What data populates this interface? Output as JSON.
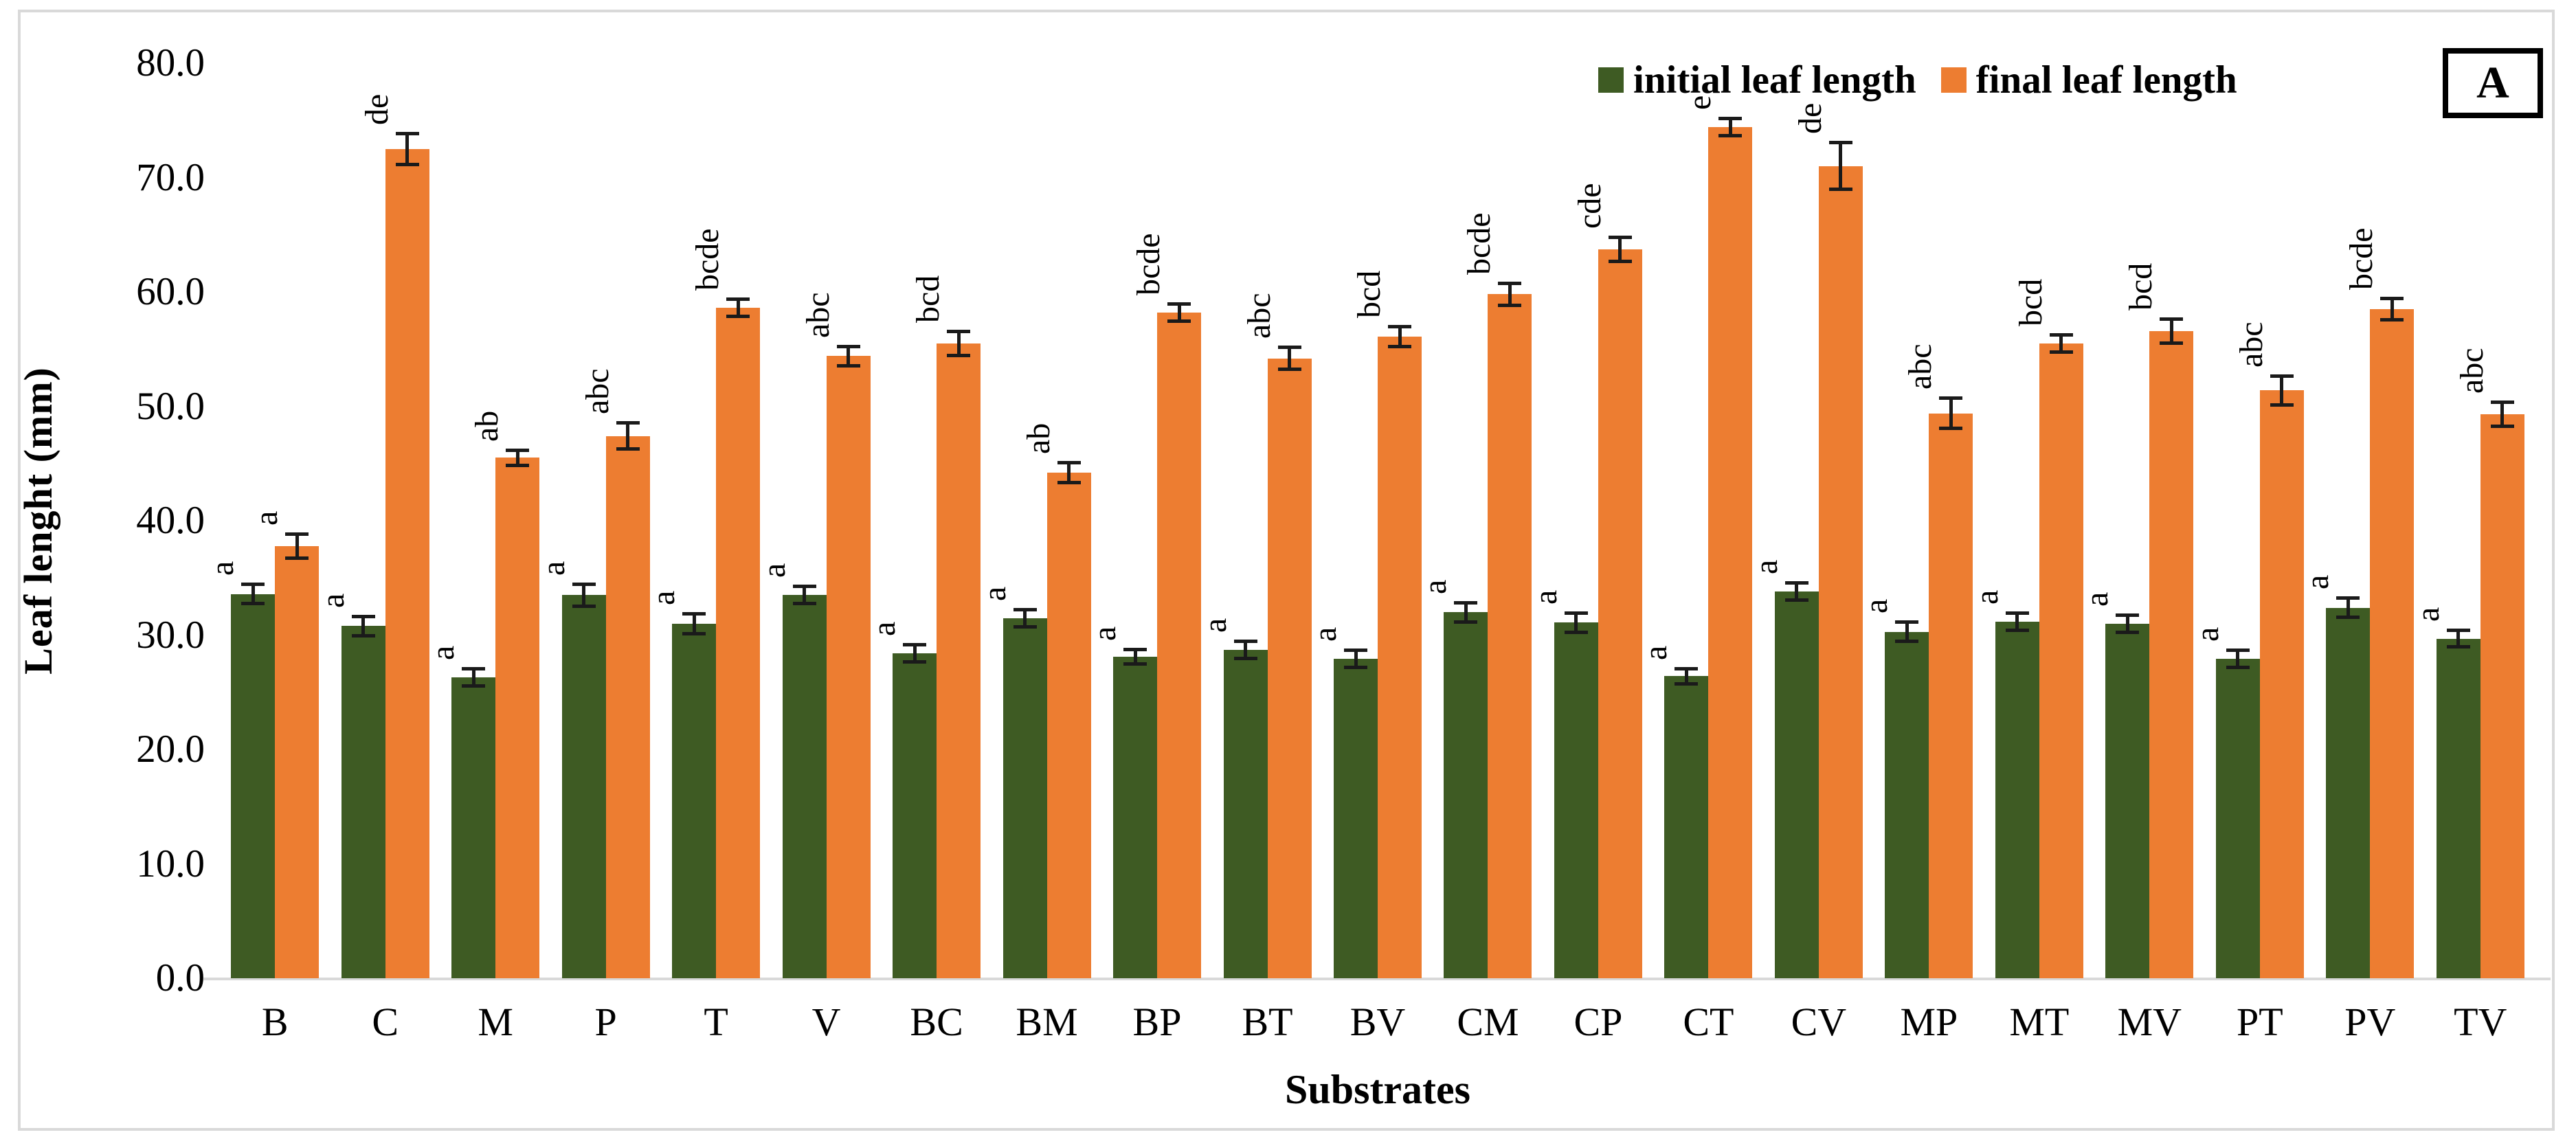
{
  "figure": {
    "panel_label": "A",
    "y_axis": {
      "title": "Leaf lenght (mm)",
      "min": 0,
      "max": 80,
      "step": 10,
      "tick_labels": [
        "0.0",
        "10.0",
        "20.0",
        "30.0",
        "40.0",
        "50.0",
        "60.0",
        "70.0",
        "80.0"
      ]
    },
    "x_axis": {
      "title": "Substrates"
    },
    "colors": {
      "axis_line": "#d9d9d9",
      "frame": "#d9d9d9",
      "error_bar": "#1a1a1a"
    }
  },
  "chart_data": {
    "type": "bar",
    "title": "",
    "xlabel": "Substrates",
    "ylabel": "Leaf lenght (mm)",
    "ylim": [
      0,
      80
    ],
    "ytick_step": 10,
    "grid": false,
    "legend_position": "top-right",
    "categories": [
      "B",
      "C",
      "M",
      "P",
      "T",
      "V",
      "BC",
      "BM",
      "BP",
      "BT",
      "BV",
      "CM",
      "CP",
      "CT",
      "CV",
      "MP",
      "MT",
      "MV",
      "PT",
      "PV",
      "TV"
    ],
    "series": [
      {
        "name": "initial leaf length",
        "color": "#3E5B23",
        "values": [
          33.6,
          30.8,
          26.3,
          33.5,
          31.0,
          33.5,
          28.4,
          31.5,
          28.1,
          28.7,
          27.9,
          32.0,
          31.1,
          26.4,
          33.8,
          30.3,
          31.2,
          31.0,
          27.9,
          32.4,
          29.7
        ],
        "errors": [
          1.0,
          1.0,
          0.9,
          1.1,
          1.0,
          0.9,
          0.9,
          0.9,
          0.8,
          0.9,
          0.9,
          1.0,
          1.0,
          0.8,
          0.9,
          1.0,
          0.9,
          0.9,
          0.9,
          1.0,
          0.9
        ],
        "sig_letters": [
          "a",
          "a",
          "a",
          "a",
          "a",
          "a",
          "a",
          "a",
          "a",
          "a",
          "a",
          "a",
          "a",
          "a",
          "a",
          "a",
          "a",
          "a",
          "a",
          "a",
          "a"
        ]
      },
      {
        "name": "final leaf length",
        "color": "#ED7D31",
        "values": [
          37.8,
          72.5,
          45.5,
          47.4,
          58.6,
          54.4,
          55.5,
          44.2,
          58.2,
          54.2,
          56.1,
          59.8,
          63.7,
          74.4,
          71.0,
          49.4,
          55.5,
          56.6,
          51.4,
          58.5,
          49.3
        ],
        "errors": [
          1.2,
          1.5,
          0.8,
          1.3,
          0.9,
          1.0,
          1.2,
          1.0,
          0.9,
          1.1,
          1.0,
          1.1,
          1.2,
          0.9,
          2.2,
          1.5,
          0.9,
          1.2,
          1.4,
          1.1,
          1.2
        ],
        "sig_letters": [
          "a",
          "de",
          "ab",
          "abc",
          "bcde",
          "abc",
          "bcd",
          "ab",
          "bcde",
          "abc",
          "bcd",
          "bcde",
          "cde",
          "e",
          "de",
          "abc",
          "bcd",
          "bcd",
          "abc",
          "bcde",
          "abc"
        ]
      }
    ]
  }
}
